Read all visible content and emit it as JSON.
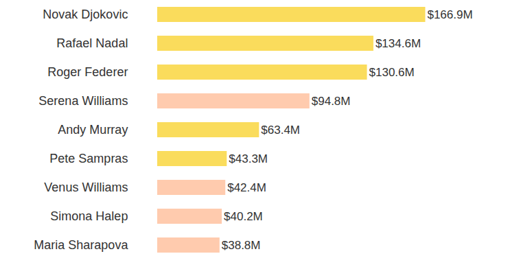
{
  "chart_data": {
    "type": "bar",
    "orientation": "horizontal",
    "categories": [
      "Novak Djokovic",
      "Rafael Nadal",
      "Roger Federer",
      "Serena Williams",
      "Andy Murray",
      "Pete Sampras",
      "Venus Williams",
      "Simona Halep",
      "Maria Sharapova"
    ],
    "values": [
      166.9,
      134.6,
      130.6,
      94.8,
      63.4,
      43.3,
      42.4,
      40.2,
      38.8
    ],
    "value_labels": [
      "$166.9M",
      "$134.6M",
      "$130.6M",
      "$94.8M",
      "$63.4M",
      "$43.3M",
      "$42.4M",
      "$40.2M",
      "$38.8M"
    ],
    "colors": [
      "#fadc5c",
      "#fadc5c",
      "#fadc5c",
      "#ffcbae",
      "#fadc5c",
      "#fadc5c",
      "#ffcbae",
      "#ffcbae",
      "#ffcbae"
    ],
    "data_labels": true,
    "tick_labels": "y",
    "grid": false
  }
}
